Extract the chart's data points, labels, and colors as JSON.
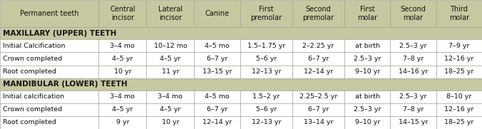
{
  "col_headers": [
    "Permanent teeth",
    "Central\nincisor",
    "Lateral\nincisor",
    "Canine",
    "First\npremolar",
    "Second\npremolar",
    "First\nmolar",
    "Second\nmolar",
    "Third\nmolar"
  ],
  "section_maxillary": "MAXILLARY (UPPER) TEETH",
  "section_mandibular": "MANDIBULAR (LOWER) TEETH",
  "maxillary_rows": [
    [
      "Initial Calcification",
      "3–4 mo",
      "10–12 mo",
      "4–5 mo",
      "1.5–1.75 yr",
      "2–2.25 yr",
      "at birth",
      "2.5–3 yr",
      "7–9 yr"
    ],
    [
      "Crown completed",
      "4–5 yr",
      "4–5 yr",
      "6–7 yr",
      "5–6 yr",
      "6–7 yr",
      "2.5–3 yr",
      "7–8 yr",
      "12–16 yr"
    ],
    [
      "Root completed",
      "10 yr",
      "11 yr",
      "13–15 yr",
      "12–13 yr",
      "12–14 yr",
      "9–10 yr",
      "14–16 yr",
      "18–25 yr"
    ]
  ],
  "mandibular_rows": [
    [
      "Initial calcification",
      "3–4 mo",
      "3–4 mo",
      "4–5 mo",
      "1.5–2 yr",
      "2.25–2.5 yr",
      "at birth",
      "2.5–3 yr",
      "8–10 yr"
    ],
    [
      "Crown completed",
      "4–5 yr",
      "4–5 yr",
      "6–7 yr",
      "5–6 yr",
      "6–7 yr",
      "2.5–3 yr",
      "7–8 yr",
      "12–16 yr"
    ],
    [
      "Root completed",
      "9 yr",
      "10 yr",
      "12–14 yr",
      "12–13 yr",
      "13–14 yr",
      "9–10 yr",
      "14–15 yr",
      "18–25 yr"
    ]
  ],
  "header_bg": "#c8c8a0",
  "section_bg": "#c8c8a0",
  "data_bg": "#ffffff",
  "border_color": "#999999",
  "text_color": "#111111",
  "header_fontsize": 7.0,
  "cell_fontsize": 6.8,
  "section_fontsize": 7.5,
  "col_widths_raw": [
    155,
    75,
    75,
    72,
    82,
    82,
    72,
    72,
    72
  ],
  "row_heights_raw": [
    38,
    17,
    18,
    18,
    18,
    17,
    18,
    18,
    18
  ],
  "fig_width": 6.76,
  "fig_height": 1.81,
  "dpi": 100
}
